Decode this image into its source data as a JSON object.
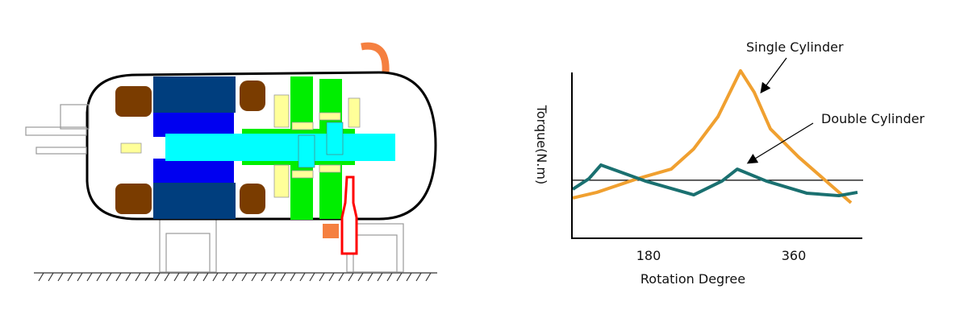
{
  "compressor": {
    "colors": {
      "stator": "#003e7e",
      "rotor": "#0000f0",
      "shaft": "#00ffff",
      "pump": "#00ee00",
      "winding": "#7a3c00",
      "bearing": "#ffff99",
      "pipe": "#f58040",
      "valve": "#ff0000"
    }
  },
  "chart_data": {
    "type": "line",
    "title": "",
    "xlabel": "Rotation Degree",
    "ylabel": "Torque(N.m)",
    "x_ticks": [
      180,
      360
    ],
    "x_tick_labels": [
      "180",
      "360"
    ],
    "xlim": [
      85,
      445
    ],
    "ylim": [
      0,
      10
    ],
    "y_ticks": [],
    "grid": false,
    "reference_line_y": 3.5,
    "series": [
      {
        "name": "Single Cylinder",
        "color": "#f0a030",
        "x": [
          86,
          116,
          166,
          208,
          236,
          266,
          294,
          311,
          331,
          366,
          406,
          431
        ],
        "y": [
          2.43,
          2.77,
          3.59,
          4.17,
          5.39,
          7.33,
          10.1,
          8.8,
          6.6,
          4.9,
          3.2,
          2.14
        ]
      },
      {
        "name": "Double Cylinder",
        "color": "#1a7070",
        "x": [
          86,
          106,
          121,
          176,
          236,
          271,
          290,
          326,
          376,
          416,
          439
        ],
        "y": [
          2.96,
          3.59,
          4.42,
          3.45,
          2.62,
          3.45,
          4.17,
          3.45,
          2.72,
          2.57,
          2.77
        ]
      }
    ],
    "annotations": [
      "Single Cylinder",
      "Double Cylinder"
    ]
  }
}
